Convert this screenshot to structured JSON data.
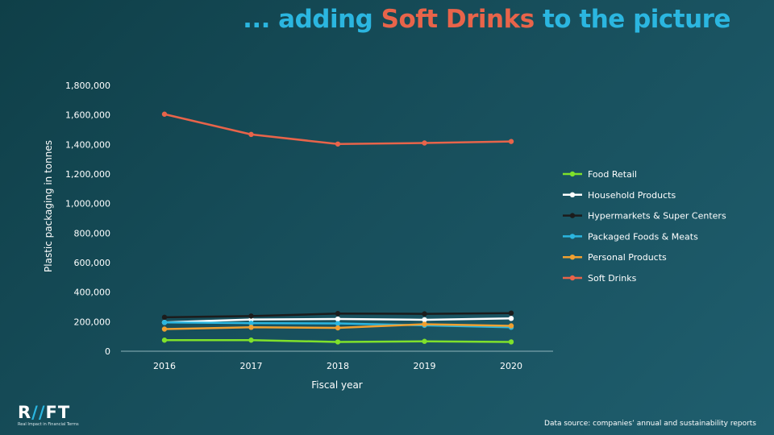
{
  "title": {
    "pre": "... adding ",
    "highlight": "Soft Drinks",
    "post": " to the picture"
  },
  "logo": {
    "text_left": "R",
    "text_slash": "//",
    "text_right": "FT",
    "tagline": "Real Impact in Financial Terms"
  },
  "source": "Data source: companies’ annual and sustainability reports",
  "colors": {
    "title_blue": "#2bb6e0",
    "title_orange": "#e8644a"
  },
  "chart_data": {
    "type": "line",
    "xlabel": "Fiscal year",
    "ylabel": "Plastic packaging in tonnes",
    "categories": [
      "2016",
      "2017",
      "2018",
      "2019",
      "2020"
    ],
    "ylim": [
      0,
      1800000
    ],
    "yticks": [
      "0",
      "200,000",
      "400,000",
      "600,000",
      "800,000",
      "1,000,000",
      "1,200,000",
      "1,400,000",
      "1,600,000",
      "1,800,000"
    ],
    "legend_position": "right",
    "series": [
      {
        "name": "Food Retail",
        "color": "#7fe12b",
        "values": [
          75000,
          75000,
          63000,
          67000,
          63000
        ]
      },
      {
        "name": "Household Products",
        "color": "#ffffff",
        "values": [
          195000,
          215000,
          218000,
          213000,
          222000
        ]
      },
      {
        "name": "Hypermarkets & Super Centers",
        "color": "#1c1c1c",
        "values": [
          230000,
          238000,
          255000,
          253000,
          258000
        ]
      },
      {
        "name": "Packaged Foods & Meats",
        "color": "#2bb6e0",
        "values": [
          195000,
          190000,
          188000,
          175000,
          162000
        ]
      },
      {
        "name": "Personal Products",
        "color": "#f0a030",
        "values": [
          150000,
          162000,
          158000,
          183000,
          172000
        ]
      },
      {
        "name": "Soft Drinks",
        "color": "#e8644a",
        "values": [
          1605000,
          1468000,
          1403000,
          1410000,
          1420000
        ]
      }
    ]
  }
}
